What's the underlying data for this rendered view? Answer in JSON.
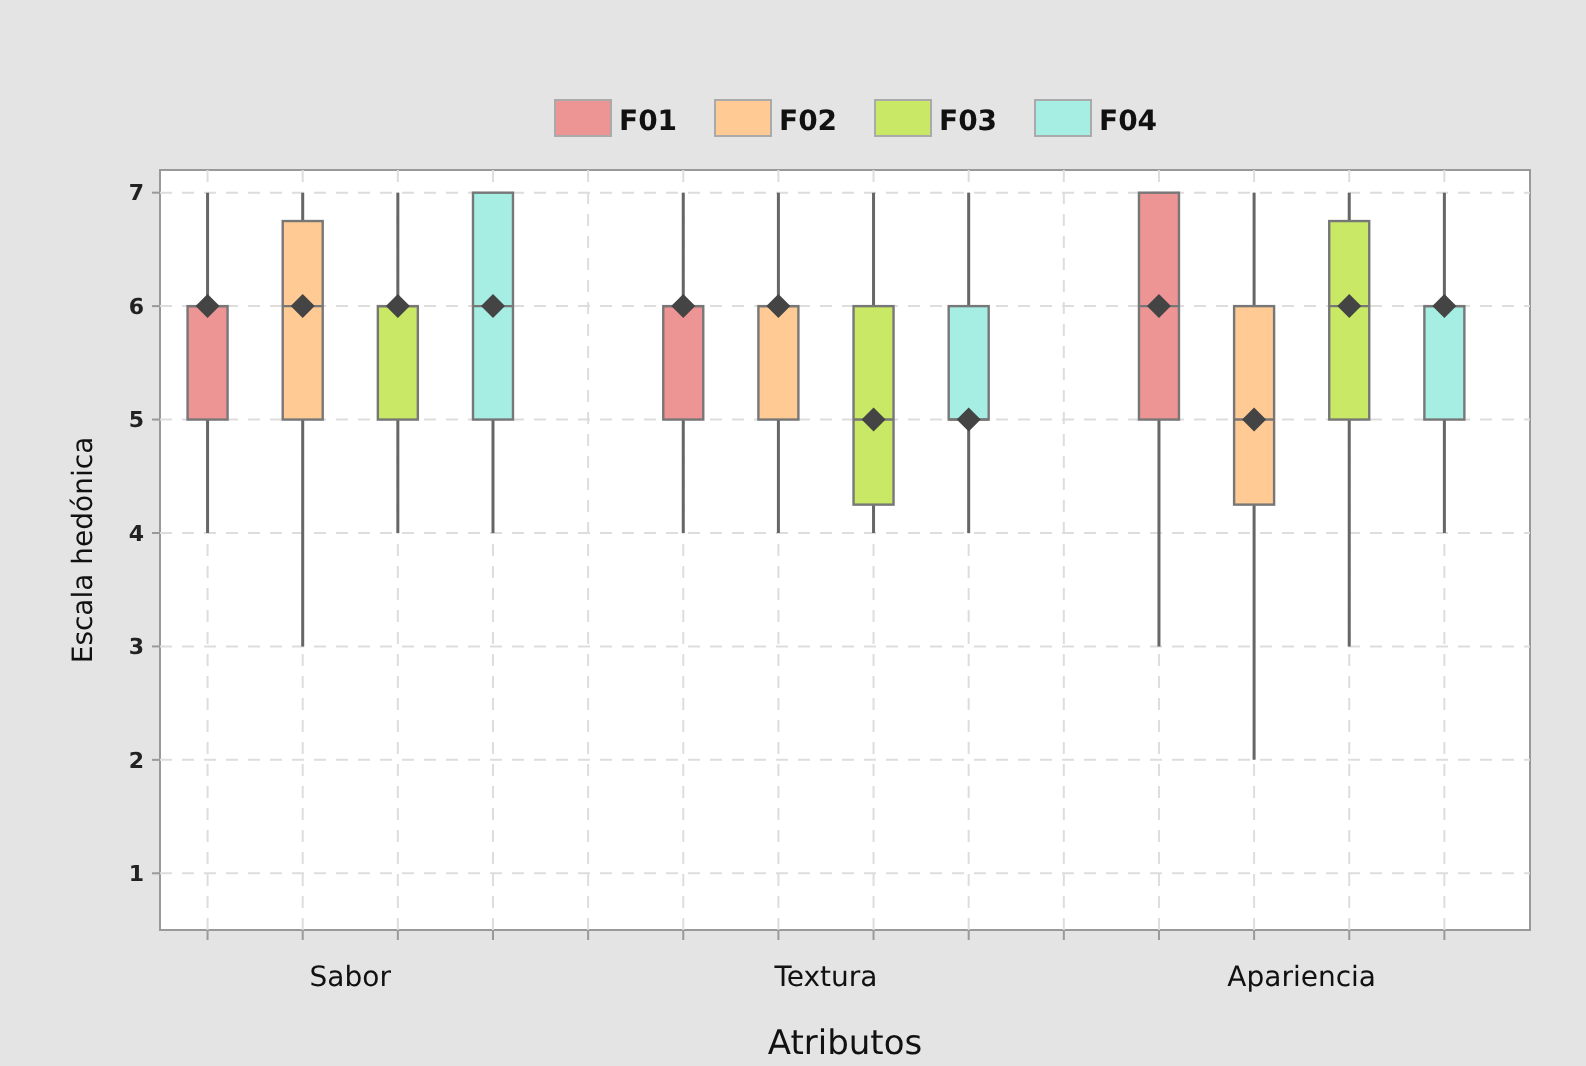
{
  "chart_data": {
    "type": "box",
    "xlabel": "Atributos",
    "ylabel": "Escala hedónica",
    "categories": [
      "Sabor",
      "Textura",
      "Apariencia"
    ],
    "ylim": [
      0.5,
      7.2
    ],
    "yticks": [
      1,
      2,
      3,
      4,
      5,
      6,
      7
    ],
    "grid": true,
    "legend": "top",
    "series": [
      {
        "name": "F01",
        "color": "#ed9494",
        "boxes": [
          {
            "low": 4,
            "q1": 5,
            "median": 6,
            "q3": 6,
            "high": 7,
            "mean": 6
          },
          {
            "low": 4,
            "q1": 5,
            "median": 6,
            "q3": 6,
            "high": 7,
            "mean": 6
          },
          {
            "low": 3,
            "q1": 5,
            "median": 6,
            "q3": 7,
            "high": 7,
            "mean": 6
          }
        ]
      },
      {
        "name": "F02",
        "color": "#ffca93",
        "boxes": [
          {
            "low": 3,
            "q1": 5,
            "median": 6,
            "q3": 6.75,
            "high": 7,
            "mean": 6
          },
          {
            "low": 4,
            "q1": 5,
            "median": 6,
            "q3": 6,
            "high": 7,
            "mean": 6
          },
          {
            "low": 2,
            "q1": 4.25,
            "median": 5,
            "q3": 6,
            "high": 7,
            "mean": 5
          }
        ]
      },
      {
        "name": "F03",
        "color": "#c8e866",
        "boxes": [
          {
            "low": 4,
            "q1": 5,
            "median": 6,
            "q3": 6,
            "high": 7,
            "mean": 6
          },
          {
            "low": 4,
            "q1": 4.25,
            "median": 5,
            "q3": 6,
            "high": 7,
            "mean": 5
          },
          {
            "low": 3,
            "q1": 5,
            "median": 6,
            "q3": 6.75,
            "high": 7,
            "mean": 6
          }
        ]
      },
      {
        "name": "F04",
        "color": "#a6eee3",
        "boxes": [
          {
            "low": 4,
            "q1": 5,
            "median": 6,
            "q3": 7,
            "high": 7,
            "mean": 6
          },
          {
            "low": 4,
            "q1": 5,
            "median": 5,
            "q3": 6,
            "high": 7,
            "mean": 5
          },
          {
            "low": 4,
            "q1": 5,
            "median": 6,
            "q3": 6,
            "high": 7,
            "mean": 6
          }
        ]
      }
    ]
  }
}
